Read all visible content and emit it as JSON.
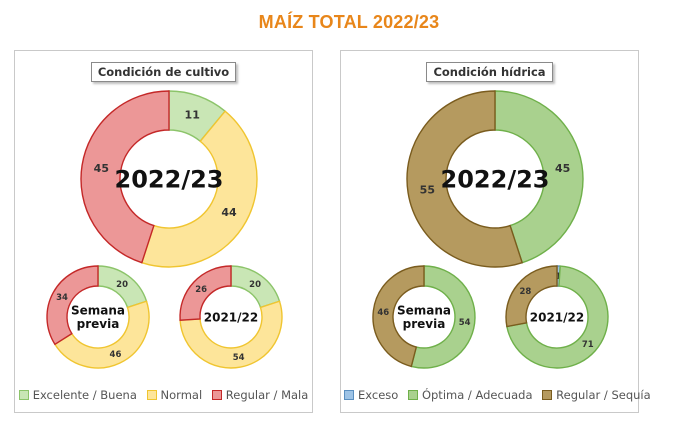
{
  "page_title": "MAÍZ TOTAL 2022/23",
  "chart_data": [
    {
      "type": "pie",
      "title": "Condición de cultivo",
      "categories": [
        "Excelente / Buena",
        "Normal",
        "Regular / Mala"
      ],
      "colors": [
        "#c9e6b5",
        "#fde59a",
        "#ec9797"
      ],
      "stroke_colors": [
        "#8cc46a",
        "#f0c530",
        "#c42828"
      ],
      "donuts": [
        {
          "label": "2022/23",
          "values": [
            11,
            44,
            45
          ]
        },
        {
          "label": "Semana previa",
          "values": [
            20,
            46,
            34
          ]
        },
        {
          "label": "2021/22",
          "values": [
            20,
            54,
            26
          ]
        }
      ],
      "legend": [
        "Excelente / Buena",
        "Normal",
        "Regular / Mala"
      ],
      "legend_placement": "bottom"
    },
    {
      "type": "pie",
      "title": "Condición hídrica",
      "categories": [
        "Exceso",
        "Óptima / Adecuada",
        "Regular / Sequía"
      ],
      "colors": [
        "#9dc3e6",
        "#a9d18e",
        "#b59a5f"
      ],
      "stroke_colors": [
        "#5a8fc0",
        "#6fb04a",
        "#7a5c1e"
      ],
      "donuts": [
        {
          "label": "2022/23",
          "values": [
            0,
            45,
            55
          ]
        },
        {
          "label": "Semana previa",
          "values": [
            0,
            54,
            46
          ]
        },
        {
          "label": "2021/22",
          "values": [
            1,
            71,
            28
          ]
        }
      ],
      "legend": [
        "Exceso",
        "Óptima / Adecuada",
        "Regular / Sequía"
      ],
      "legend_placement": "bottom"
    }
  ]
}
